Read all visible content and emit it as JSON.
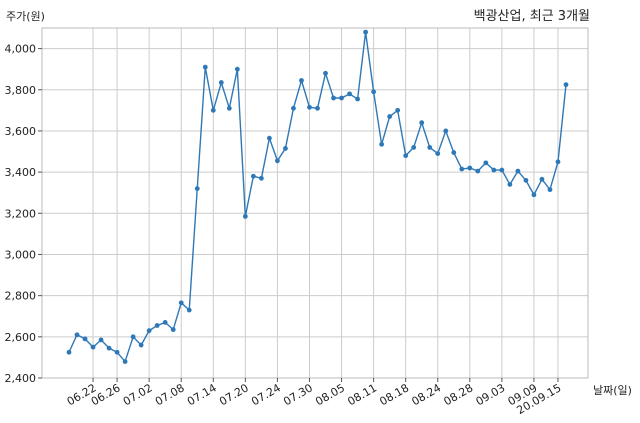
{
  "chart_data": {
    "type": "line",
    "title": "백광산업, 최근 3개월",
    "ylabel": "주가(원)",
    "xlabel": "날짜(일)",
    "ylim": [
      2400,
      4100
    ],
    "yticks": [
      2400,
      2600,
      2800,
      3000,
      3200,
      3400,
      3600,
      3800,
      4000
    ],
    "ytick_labels": [
      "2,400",
      "2,600",
      "2,800",
      "3,000",
      "3,200",
      "3,400",
      "3,600",
      "3,800",
      "4,000"
    ],
    "xtick_labels": [
      "06.22",
      "06.26",
      "07.02",
      "07.08",
      "07.14",
      "07.20",
      "07.24",
      "07.30",
      "08.05",
      "08.11",
      "08.18",
      "08.24",
      "08.28",
      "09.03",
      "09.09",
      "20.09.15"
    ],
    "xtick_positions": [
      3,
      6,
      10,
      14,
      18,
      22,
      26,
      30,
      34,
      38,
      42,
      46,
      50,
      54,
      58,
      61
    ],
    "grid": true,
    "color": "#2e78b7",
    "series": [
      {
        "values": [
          2525,
          2610,
          2590,
          2550,
          2585,
          2545,
          2525,
          2480,
          2600,
          2560,
          2630,
          2655,
          2670,
          2635,
          2765,
          2730,
          3320,
          3910,
          3700,
          3835,
          3710,
          3900,
          3185,
          3380,
          3370,
          3565,
          3455,
          3515,
          3710,
          3845,
          3715,
          3710,
          3880,
          3760,
          3760,
          3780,
          3755,
          4080,
          3790,
          3535,
          3670,
          3700,
          3480,
          3520,
          3640,
          3520,
          3490,
          3600,
          3495,
          3415,
          3420,
          3405,
          3445,
          3410,
          3410,
          3340,
          3405,
          3360,
          3290,
          3365,
          3315,
          3450,
          3825
        ]
      }
    ]
  }
}
